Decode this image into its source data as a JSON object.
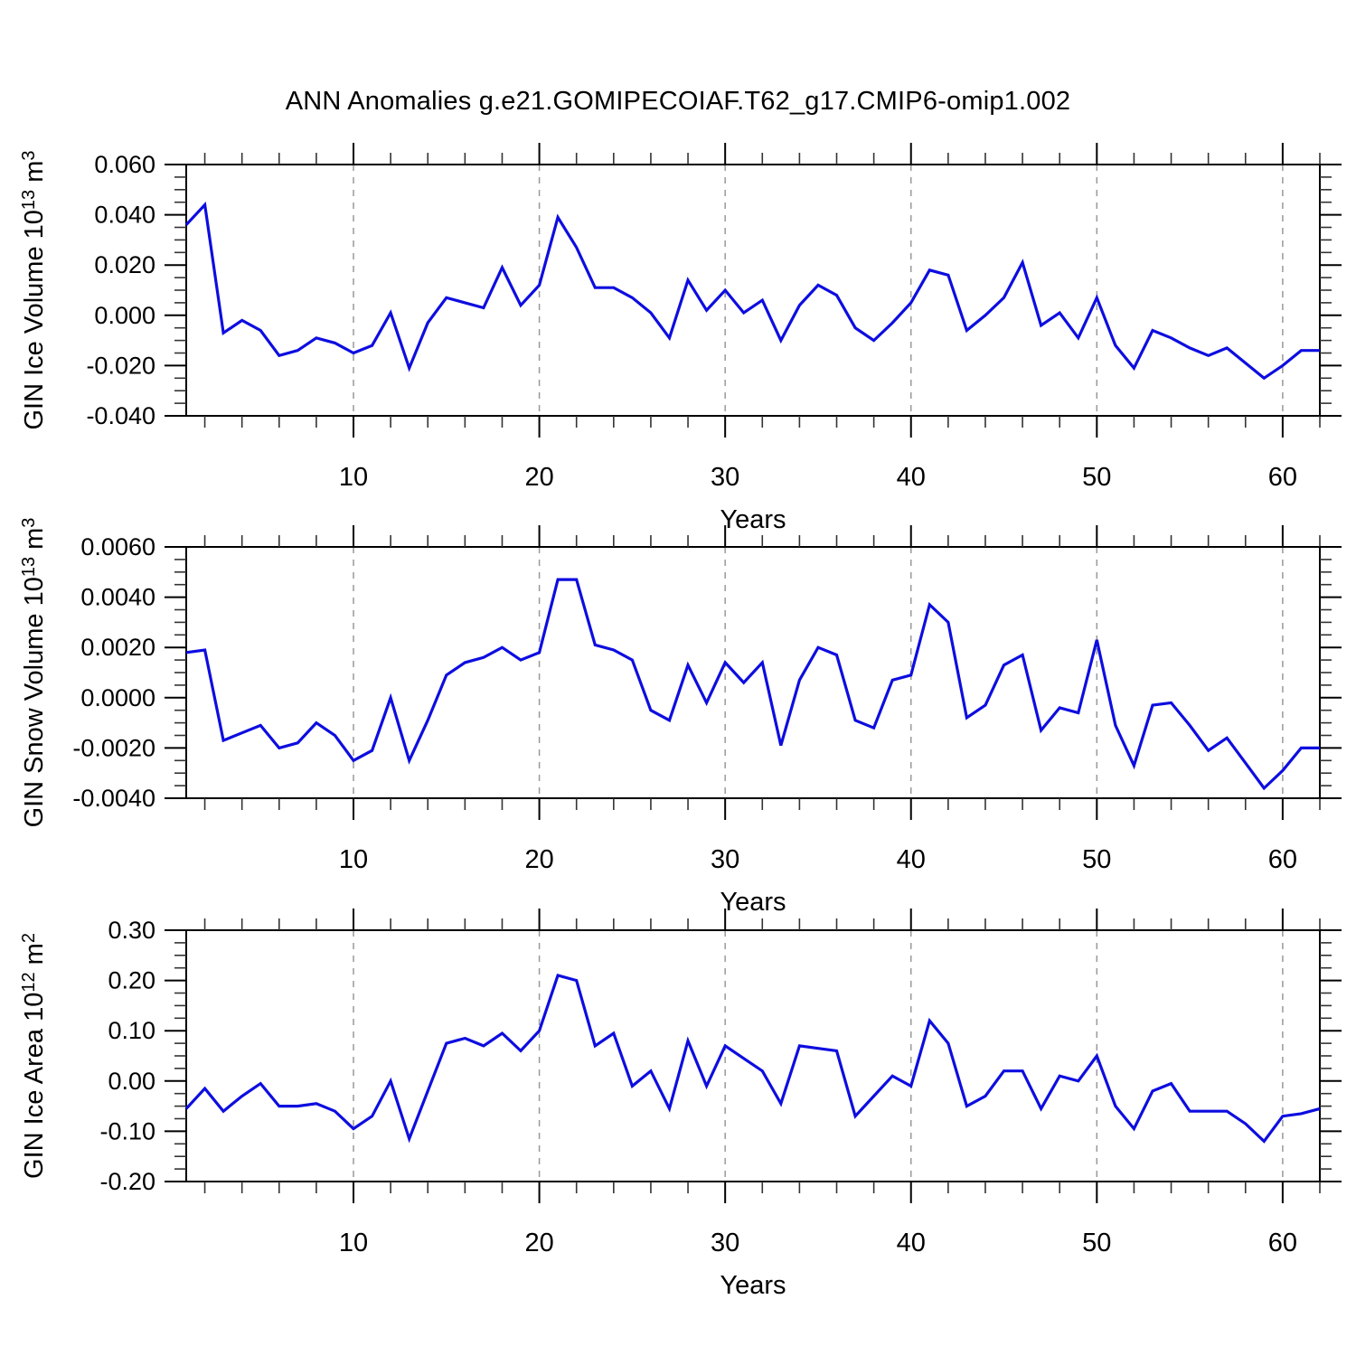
{
  "title": "ANN Anomalies g.e21.GOMIPECOIAF.T62_g17.CMIP6-omip1.002",
  "line_color": "#0d0de0",
  "grid_color": "#999999",
  "chart_data": [
    {
      "type": "line",
      "name": "gin-ice-volume",
      "title": "",
      "xlabel": "Years",
      "ylabel": {
        "base": "GIN Ice Volume 10",
        "exp": "13",
        "unit": " m",
        "unit_exp": "3"
      },
      "xlim": [
        1,
        62
      ],
      "x_start_year": 1,
      "x_step": 1,
      "xticks": [
        10,
        20,
        30,
        40,
        50,
        60
      ],
      "xminor_step": 2,
      "ylim": [
        -0.04,
        0.06
      ],
      "yticks": {
        "values": [
          0.06,
          0.04,
          0.02,
          0.0,
          -0.02,
          -0.04
        ],
        "labels": [
          "0.060",
          "0.040",
          "0.020",
          "0.000",
          "-0.020",
          "-0.040"
        ]
      },
      "yminor_step": 0.005,
      "grid": "vertical-dashed",
      "legend": "none",
      "values": [
        0.036,
        0.044,
        -0.007,
        -0.002,
        -0.006,
        -0.016,
        -0.014,
        -0.009,
        -0.011,
        -0.015,
        -0.012,
        0.001,
        -0.021,
        -0.003,
        0.007,
        0.005,
        0.003,
        0.019,
        0.004,
        0.012,
        0.039,
        0.027,
        0.011,
        0.011,
        0.007,
        0.001,
        -0.009,
        0.014,
        0.002,
        0.01,
        0.001,
        0.006,
        -0.01,
        0.004,
        0.012,
        0.008,
        -0.005,
        -0.01,
        -0.003,
        0.005,
        0.018,
        0.016,
        -0.006,
        0.0,
        0.007,
        0.021,
        -0.004,
        0.001,
        -0.009,
        0.007,
        -0.012,
        -0.021,
        -0.006,
        -0.009,
        -0.013,
        -0.016,
        -0.013,
        -0.019,
        -0.025,
        -0.02,
        -0.014,
        -0.014
      ]
    },
    {
      "type": "line",
      "name": "gin-snow-volume",
      "title": "",
      "xlabel": "Years",
      "ylabel": {
        "base": "GIN Snow Volume 10",
        "exp": "13",
        "unit": " m",
        "unit_exp": "3"
      },
      "xlim": [
        1,
        62
      ],
      "x_start_year": 1,
      "x_step": 1,
      "xticks": [
        10,
        20,
        30,
        40,
        50,
        60
      ],
      "xminor_step": 2,
      "ylim": [
        -0.004,
        0.006
      ],
      "yticks": {
        "values": [
          0.006,
          0.004,
          0.002,
          0.0,
          -0.002,
          -0.004
        ],
        "labels": [
          "0.0060",
          "0.0040",
          "0.0020",
          "0.0000",
          "-0.0020",
          "-0.0040"
        ]
      },
      "yminor_step": 0.0005,
      "grid": "vertical-dashed",
      "legend": "none",
      "values": [
        0.0018,
        0.0019,
        -0.0017,
        -0.0014,
        -0.0011,
        -0.002,
        -0.0018,
        -0.001,
        -0.0015,
        -0.0025,
        -0.0021,
        0.0,
        -0.0025,
        -0.0009,
        0.0009,
        0.0014,
        0.0016,
        0.002,
        0.0015,
        0.0018,
        0.0047,
        0.0047,
        0.0021,
        0.0019,
        0.0015,
        -0.0005,
        -0.0009,
        0.0013,
        -0.0002,
        0.0014,
        0.0006,
        0.0014,
        -0.0019,
        0.0007,
        0.002,
        0.0017,
        -0.0009,
        -0.0012,
        0.0007,
        0.0009,
        0.0037,
        0.003,
        -0.0008,
        -0.0003,
        0.0013,
        0.0017,
        -0.0013,
        -0.0004,
        -0.0006,
        0.0023,
        -0.0011,
        -0.0027,
        -0.0003,
        -0.0002,
        -0.0011,
        -0.0021,
        -0.0016,
        -0.0026,
        -0.0036,
        -0.0029,
        -0.002,
        -0.002
      ]
    },
    {
      "type": "line",
      "name": "gin-ice-area",
      "title": "",
      "xlabel": "Years",
      "ylabel": {
        "base": "GIN Ice Area 10",
        "exp": "12",
        "unit": " m",
        "unit_exp": "2"
      },
      "xlim": [
        1,
        62
      ],
      "x_start_year": 1,
      "x_step": 1,
      "xticks": [
        10,
        20,
        30,
        40,
        50,
        60
      ],
      "xminor_step": 2,
      "ylim": [
        -0.2,
        0.3
      ],
      "yticks": {
        "values": [
          0.3,
          0.2,
          0.1,
          0.0,
          -0.1,
          -0.2
        ],
        "labels": [
          "0.30",
          "0.20",
          "0.10",
          "0.00",
          "-0.10",
          "-0.20"
        ]
      },
      "yminor_step": 0.025,
      "grid": "vertical-dashed",
      "legend": "none",
      "values": [
        -0.055,
        -0.015,
        -0.06,
        -0.03,
        -0.005,
        -0.05,
        -0.05,
        -0.045,
        -0.06,
        -0.095,
        -0.07,
        0.0,
        -0.115,
        -0.02,
        0.075,
        0.085,
        0.07,
        0.095,
        0.06,
        0.1,
        0.21,
        0.2,
        0.07,
        0.095,
        -0.01,
        0.02,
        -0.055,
        0.08,
        -0.01,
        0.07,
        0.045,
        0.02,
        -0.045,
        0.07,
        0.065,
        0.06,
        -0.07,
        -0.03,
        0.01,
        -0.01,
        0.12,
        0.075,
        -0.05,
        -0.03,
        0.02,
        0.02,
        -0.055,
        0.01,
        0.0,
        0.05,
        -0.05,
        -0.095,
        -0.02,
        -0.005,
        -0.06,
        -0.06,
        -0.06,
        -0.085,
        -0.12,
        -0.07,
        -0.065,
        -0.055
      ]
    }
  ]
}
